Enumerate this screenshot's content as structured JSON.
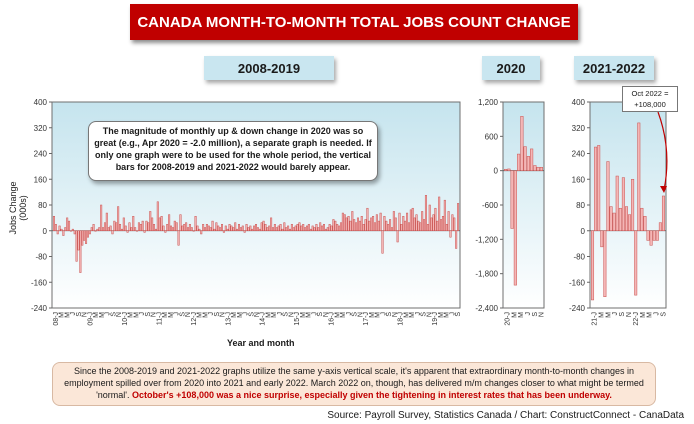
{
  "title": "CANADA MONTH-TO-MONTH TOTAL JOBS COUNT CHANGE",
  "panel_labels": [
    "2008-2019",
    "2020",
    "2021-2022"
  ],
  "y_axis_title": "Jobs Change (000s)",
  "x_axis_title": "Year and month",
  "callout_text": "The magnitude of monthly up & down change in 2020 was so great (e.g., Apr 2020 = -2.0 million), a separate graph is needed. If only one graph were to be used for the whole period, the vertical bars for 2008-2019 and 2021-2022 would barely appear.",
  "oct_callout": {
    "line1": "Oct 2022 =",
    "line2": "+108,000"
  },
  "note": {
    "main": "Since the 2008-2019 and 2021-2022 graphs utilize the same y-axis vertical scale, it's apparent that extraordinary month-to-month changes in employment spilled over from 2020 into 2021 and early 2022. March 2022 on, though, has delivered m/m changes closer to what might be termed 'normal'. ",
    "highlight": "October's +108,000 was a nice surprise, especially given the tightening in interest rates that has been underway."
  },
  "source": "Source: Payroll Survey, Statistics Canada / Chart: ConstructConnect - CanaData",
  "colors": {
    "bar_fill": "#f4b6b6",
    "bar_stroke": "#c9504e",
    "title_bg": "#c00000",
    "panel_bg": "#c9e6f0"
  },
  "chart_data": [
    {
      "type": "bar",
      "name": "2008-2019",
      "ylim": [
        -240,
        400
      ],
      "yticks": [
        "400",
        "320",
        "240",
        "160",
        "80",
        "0",
        "-80",
        "-160",
        "-240"
      ],
      "xtick_labels": [
        "08-J",
        "M",
        "M",
        "J",
        "S",
        "N",
        "09-J",
        "M",
        "M",
        "J",
        "S",
        "N",
        "10-J",
        "M",
        "M",
        "J",
        "S",
        "N",
        "11-J",
        "M",
        "M",
        "J",
        "S",
        "N",
        "12-J",
        "M",
        "M",
        "J",
        "S",
        "N",
        "13-J",
        "M",
        "M",
        "J",
        "S",
        "N",
        "14-J",
        "M",
        "M",
        "J",
        "S",
        "N",
        "15-J",
        "M",
        "M",
        "J",
        "S",
        "N",
        "16-J",
        "M",
        "M",
        "J",
        "S",
        "N",
        "17-J",
        "M",
        "M",
        "J",
        "S",
        "N",
        "18-J",
        "M",
        "M",
        "J",
        "S",
        "N",
        "19-J",
        "M",
        "M",
        "J",
        "S"
      ],
      "values": [
        45,
        20,
        -10,
        15,
        5,
        -15,
        10,
        40,
        30,
        0,
        5,
        -10,
        -95,
        -60,
        -130,
        -45,
        -30,
        -40,
        -20,
        -10,
        10,
        20,
        0,
        5,
        10,
        80,
        10,
        25,
        55,
        10,
        15,
        -10,
        30,
        25,
        75,
        20,
        5,
        40,
        15,
        -5,
        25,
        10,
        45,
        10,
        0,
        25,
        20,
        30,
        -5,
        30,
        25,
        60,
        40,
        20,
        5,
        90,
        40,
        45,
        15,
        -5,
        20,
        50,
        15,
        10,
        30,
        25,
        -45,
        50,
        15,
        20,
        25,
        10,
        20,
        10,
        0,
        45,
        15,
        5,
        -10,
        20,
        10,
        20,
        15,
        10,
        30,
        5,
        25,
        15,
        10,
        20,
        -5,
        15,
        5,
        20,
        15,
        10,
        25,
        5,
        20,
        10,
        15,
        -5,
        20,
        10,
        15,
        5,
        15,
        20,
        10,
        5,
        25,
        30,
        20,
        10,
        15,
        40,
        10,
        20,
        10,
        15,
        20,
        5,
        25,
        10,
        15,
        5,
        20,
        10,
        15,
        20,
        25,
        15,
        20,
        10,
        15,
        20,
        5,
        15,
        10,
        20,
        10,
        25,
        15,
        20,
        5,
        10,
        20,
        15,
        35,
        30,
        20,
        15,
        25,
        55,
        50,
        40,
        45,
        30,
        60,
        35,
        25,
        40,
        30,
        45,
        20,
        35,
        70,
        30,
        40,
        45,
        25,
        50,
        30,
        55,
        -70,
        45,
        30,
        20,
        35,
        10,
        60,
        40,
        -35,
        55,
        20,
        45,
        30,
        55,
        25,
        65,
        70,
        40,
        50,
        30,
        25,
        60,
        35,
        110,
        20,
        80,
        40,
        50,
        70,
        30,
        105,
        35,
        45,
        95,
        20,
        60,
        -20,
        50,
        40,
        -55,
        85
      ]
    },
    {
      "type": "bar",
      "name": "2020",
      "ylim": [
        -2400,
        1200
      ],
      "yticks": [
        "1,200",
        "600",
        "0",
        "-600",
        "-1,200",
        "-1,800",
        "-2,400"
      ],
      "xtick_labels": [
        "20-J",
        "M",
        "M",
        "J",
        "S",
        "N"
      ],
      "values": [
        25,
        30,
        -1010,
        -2000,
        290,
        950,
        420,
        250,
        380,
        90,
        60,
        60
      ]
    },
    {
      "type": "bar",
      "name": "2021-2022",
      "ylim": [
        -240,
        400
      ],
      "yticks": [
        "400",
        "320",
        "240",
        "160",
        "80",
        "0",
        "-80",
        "-160",
        "-240"
      ],
      "xtick_labels": [
        "21-J",
        "M",
        "M",
        "J",
        "S",
        "N",
        "22-J",
        "M",
        "M",
        "J",
        "S"
      ],
      "values": [
        -215,
        260,
        265,
        -50,
        -205,
        215,
        75,
        55,
        170,
        70,
        165,
        75,
        50,
        160,
        -200,
        335,
        70,
        45,
        -30,
        -45,
        -30,
        -30,
        25,
        108
      ]
    }
  ]
}
